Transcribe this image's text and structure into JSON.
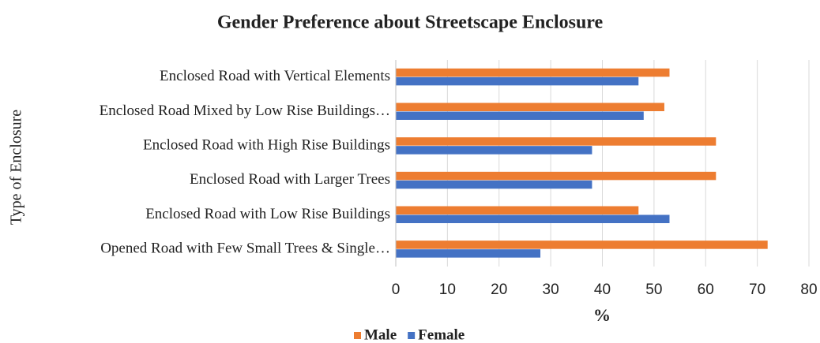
{
  "chart_data": {
    "type": "hbar",
    "title": "Gender Preference about Streetscape Enclosure",
    "x_label": "%",
    "y_label": "Type of Enclosure",
    "categories": [
      "Enclosed Road with Vertical Elements",
      "Enclosed Road Mixed by Low Rise Buildings…",
      "Enclosed Road with High Rise Buildings",
      "Enclosed Road with Larger Trees",
      "Enclosed Road with Low Rise Buildings",
      "Opened Road with Few Small Trees & Single…"
    ],
    "series": [
      {
        "name": "Male",
        "color": "#ed7d31",
        "values": [
          53,
          52,
          62,
          62,
          47,
          72
        ]
      },
      {
        "name": "Female",
        "color": "#4472c4",
        "values": [
          47,
          48,
          38,
          38,
          53,
          28
        ]
      }
    ],
    "xlim": [
      0,
      80
    ],
    "xticks": [
      0,
      10,
      20,
      30,
      40,
      50,
      60,
      70,
      80
    ],
    "grid": true,
    "legend": "bottom"
  }
}
